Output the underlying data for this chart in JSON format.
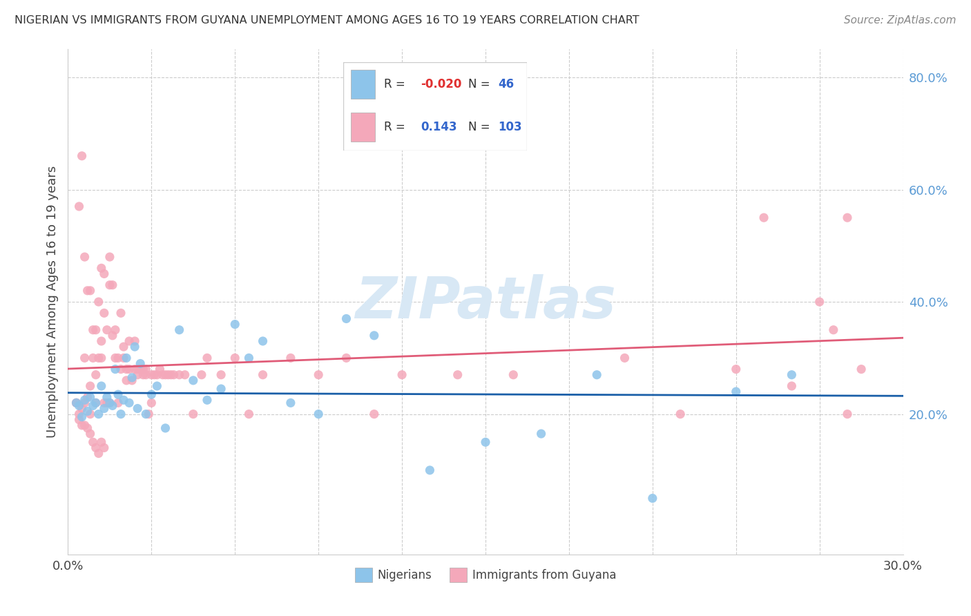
{
  "title": "NIGERIAN VS IMMIGRANTS FROM GUYANA UNEMPLOYMENT AMONG AGES 16 TO 19 YEARS CORRELATION CHART",
  "source": "Source: ZipAtlas.com",
  "ylabel": "Unemployment Among Ages 16 to 19 years",
  "xlim": [
    0.0,
    0.3
  ],
  "ylim": [
    -0.05,
    0.85
  ],
  "ytick_positions": [
    0.2,
    0.4,
    0.6,
    0.8
  ],
  "ytick_labels": [
    "20.0%",
    "40.0%",
    "60.0%",
    "80.0%"
  ],
  "legend_R1": "-0.020",
  "legend_N1": "46",
  "legend_R2": "0.143",
  "legend_N2": "103",
  "color_nigerian": "#8DC4EA",
  "color_guyana": "#F4A8BA",
  "color_nigerian_line": "#1A5FA8",
  "color_guyana_line": "#E05C78",
  "color_R_negative": "#E03030",
  "color_R_positive": "#3366CC",
  "color_N": "#3366CC",
  "watermark_color": "#D8E8F5",
  "nigerian_x": [
    0.003,
    0.004,
    0.005,
    0.006,
    0.007,
    0.008,
    0.009,
    0.01,
    0.011,
    0.012,
    0.013,
    0.014,
    0.015,
    0.016,
    0.017,
    0.018,
    0.019,
    0.02,
    0.021,
    0.022,
    0.023,
    0.024,
    0.025,
    0.026,
    0.028,
    0.03,
    0.032,
    0.035,
    0.04,
    0.045,
    0.05,
    0.055,
    0.06,
    0.065,
    0.07,
    0.08,
    0.09,
    0.1,
    0.11,
    0.13,
    0.15,
    0.17,
    0.19,
    0.21,
    0.24,
    0.26
  ],
  "nigerian_y": [
    0.22,
    0.215,
    0.195,
    0.225,
    0.205,
    0.23,
    0.215,
    0.22,
    0.2,
    0.25,
    0.21,
    0.23,
    0.22,
    0.215,
    0.28,
    0.235,
    0.2,
    0.225,
    0.3,
    0.22,
    0.265,
    0.32,
    0.21,
    0.29,
    0.2,
    0.235,
    0.25,
    0.175,
    0.35,
    0.26,
    0.225,
    0.245,
    0.36,
    0.3,
    0.33,
    0.22,
    0.2,
    0.37,
    0.34,
    0.1,
    0.15,
    0.165,
    0.27,
    0.05,
    0.24,
    0.27
  ],
  "guyana_x": [
    0.003,
    0.004,
    0.004,
    0.005,
    0.005,
    0.006,
    0.006,
    0.006,
    0.007,
    0.007,
    0.008,
    0.008,
    0.008,
    0.009,
    0.009,
    0.01,
    0.01,
    0.01,
    0.011,
    0.011,
    0.012,
    0.012,
    0.012,
    0.013,
    0.013,
    0.013,
    0.014,
    0.014,
    0.015,
    0.015,
    0.015,
    0.016,
    0.016,
    0.017,
    0.017,
    0.018,
    0.018,
    0.019,
    0.019,
    0.02,
    0.02,
    0.021,
    0.021,
    0.022,
    0.022,
    0.023,
    0.024,
    0.024,
    0.025,
    0.025,
    0.026,
    0.027,
    0.027,
    0.028,
    0.028,
    0.029,
    0.03,
    0.03,
    0.031,
    0.032,
    0.033,
    0.034,
    0.035,
    0.036,
    0.037,
    0.038,
    0.04,
    0.042,
    0.045,
    0.048,
    0.05,
    0.055,
    0.06,
    0.065,
    0.07,
    0.08,
    0.09,
    0.1,
    0.11,
    0.12,
    0.14,
    0.16,
    0.2,
    0.22,
    0.24,
    0.25,
    0.26,
    0.27,
    0.275,
    0.28,
    0.003,
    0.004,
    0.005,
    0.006,
    0.007,
    0.008,
    0.009,
    0.01,
    0.011,
    0.012,
    0.013,
    0.28,
    0.285
  ],
  "guyana_y": [
    0.22,
    0.2,
    0.57,
    0.21,
    0.66,
    0.22,
    0.3,
    0.48,
    0.23,
    0.42,
    0.25,
    0.2,
    0.42,
    0.3,
    0.35,
    0.27,
    0.22,
    0.35,
    0.4,
    0.3,
    0.33,
    0.3,
    0.46,
    0.38,
    0.22,
    0.45,
    0.22,
    0.35,
    0.48,
    0.22,
    0.43,
    0.34,
    0.43,
    0.35,
    0.3,
    0.22,
    0.3,
    0.38,
    0.28,
    0.3,
    0.32,
    0.28,
    0.26,
    0.28,
    0.33,
    0.26,
    0.28,
    0.33,
    0.27,
    0.28,
    0.28,
    0.27,
    0.28,
    0.27,
    0.28,
    0.2,
    0.22,
    0.27,
    0.27,
    0.27,
    0.28,
    0.27,
    0.27,
    0.27,
    0.27,
    0.27,
    0.27,
    0.27,
    0.2,
    0.27,
    0.3,
    0.27,
    0.3,
    0.2,
    0.27,
    0.3,
    0.27,
    0.3,
    0.2,
    0.27,
    0.27,
    0.27,
    0.3,
    0.2,
    0.28,
    0.55,
    0.25,
    0.4,
    0.35,
    0.2,
    0.22,
    0.19,
    0.18,
    0.18,
    0.175,
    0.165,
    0.15,
    0.14,
    0.13,
    0.15,
    0.14,
    0.55,
    0.28
  ]
}
